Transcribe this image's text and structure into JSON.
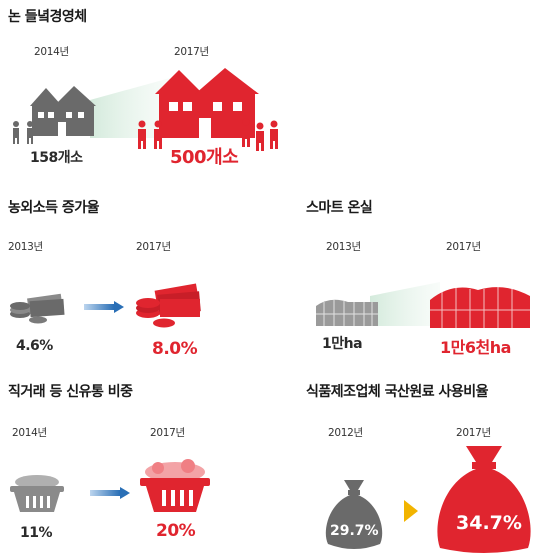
{
  "colors": {
    "red": "#e0252f",
    "gray": "#6a6a6a",
    "arrow_blue": "#2a6fb6",
    "arrow_yellow": "#f2b400"
  },
  "farm": {
    "title": "논 들녘경영체",
    "year_before": "2014년",
    "year_after": "2017년",
    "value_before": "158개소",
    "value_after": "500개소",
    "icon_before": "house-gray-icon",
    "icon_after": "house-red-icon"
  },
  "income": {
    "title": "농외소득 증가율",
    "year_before": "2013년",
    "year_after": "2017년",
    "value_before": "4.6%",
    "value_after": "8.0%",
    "icon_before": "coins-gray-icon",
    "icon_after": "coins-red-icon"
  },
  "greenhouse": {
    "title": "스마트 온실",
    "year_before": "2013년",
    "year_after": "2017년",
    "value_before": "1만ha",
    "value_after": "1만6천ha",
    "icon_before": "greenhouse-gray-icon",
    "icon_after": "greenhouse-red-icon"
  },
  "direct": {
    "title": "직거래 등 신유통 비중",
    "year_before": "2014년",
    "year_after": "2017년",
    "value_before": "11%",
    "value_after": "20%",
    "icon_before": "basket-gray-icon",
    "icon_after": "basket-red-icon"
  },
  "food": {
    "title": "식품제조업체 국산원료 사용비율",
    "year_before": "2012년",
    "year_after": "2017년",
    "value_before": "29.7%",
    "value_after": "34.7%",
    "icon_before": "sack-gray-icon",
    "icon_after": "sack-red-icon"
  }
}
